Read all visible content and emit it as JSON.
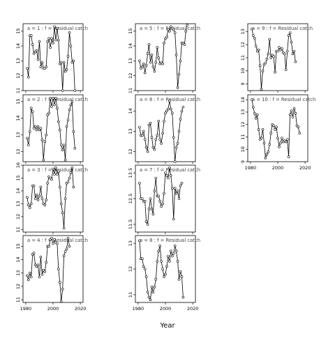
{
  "xlabel": "Year",
  "chart_data": [
    {
      "type": "line",
      "title": "a = 1 : f = Residual catch",
      "x": [
        1981,
        1982,
        1983,
        1984,
        1985,
        1986,
        1987,
        1988,
        1989,
        1990,
        1991,
        1992,
        1993,
        1994,
        1995,
        1996,
        1997,
        1998,
        1999,
        2000,
        2001,
        2002,
        2003,
        2004,
        2005,
        2006,
        2007,
        2008,
        2009,
        2010,
        2011,
        2012,
        2013,
        2014,
        2015,
        2016,
        2017,
        2018
      ],
      "y": [
        12.5,
        11.9,
        14.7,
        14.7,
        14.1,
        13.5,
        13.6,
        13.7,
        13.1,
        14.3,
        12.6,
        12.9,
        12.5,
        12.5,
        12.6,
        14.3,
        14.5,
        13.9,
        14.5,
        14.2,
        15.3,
        14.4,
        15.2,
        14.4,
        12.8,
        12.9,
        11.0,
        12.9,
        12.3,
        12.4,
        13.3,
        14.9,
        14.0,
        12.9,
        13.0,
        11.0,
        null,
        null
      ],
      "xlim": [
        1978,
        2022
      ],
      "ylim": [
        11,
        15.5
      ],
      "yticks": [
        11,
        12,
        13,
        14,
        15
      ],
      "xticks": [
        1980,
        2000,
        2020
      ],
      "show_xticklabels": false
    },
    {
      "type": "line",
      "title": "a = 5 : f = Residual catch",
      "x": [
        1981,
        1982,
        1983,
        1984,
        1985,
        1986,
        1987,
        1988,
        1989,
        1990,
        1991,
        1992,
        1993,
        1994,
        1995,
        1996,
        1997,
        1998,
        1999,
        2000,
        2001,
        2002,
        2003,
        2004,
        2005,
        2006,
        2007,
        2008,
        2009,
        2010,
        2011,
        2012,
        2013,
        2014,
        2015,
        2016,
        2017,
        2018
      ],
      "y": [
        13.0,
        12.5,
        12.6,
        12.8,
        12.2,
        12.7,
        13.5,
        14.1,
        12.9,
        13.4,
        12.6,
        12.3,
        12.9,
        13.9,
        13.2,
        12.8,
        12.9,
        12.8,
        14.2,
        14.5,
        14.6,
        15.1,
        15.0,
        15.3,
        15.2,
        15.1,
        14.9,
        13.4,
        11.2,
        12.1,
        13.0,
        14.2,
        14.2,
        14.1,
        15.0,
        15.4,
        null,
        null
      ],
      "xlim": [
        1978,
        2022
      ],
      "ylim": [
        11,
        15.5
      ],
      "yticks": [
        11,
        12,
        13,
        14,
        15
      ],
      "xticks": [
        1980,
        2000,
        2020
      ],
      "show_xticklabels": false
    },
    {
      "type": "line",
      "title": "a = 9 : f = Residual catch",
      "x": [
        1981,
        1982,
        1983,
        1984,
        1985,
        1986,
        1987,
        1988,
        1989,
        1990,
        1991,
        1992,
        1993,
        1994,
        1995,
        1996,
        1997,
        1998,
        1999,
        2000,
        2001,
        2002,
        2003,
        2004,
        2005,
        2006,
        2007,
        2008,
        2009,
        2010,
        2011,
        2012,
        2013,
        2014,
        2015,
        2016,
        2017,
        2018
      ],
      "y": [
        13.2,
        12.7,
        12.5,
        11.9,
        11.5,
        11.6,
        10.4,
        8.6,
        10.0,
        10.5,
        10.6,
        10.9,
        11.3,
        12.4,
        11.0,
        11.2,
        11.1,
        9.9,
        11.5,
        11.5,
        11.8,
        11.6,
        11.7,
        11.4,
        11.3,
        10.1,
        11.5,
        12.7,
        12.9,
        12.2,
        11.3,
        11.5,
        10.7,
        null,
        null,
        null,
        null,
        null
      ],
      "xlim": [
        1978,
        2022
      ],
      "ylim": [
        8.5,
        13.6
      ],
      "yticks": [
        9,
        10,
        11,
        12,
        13
      ],
      "xticks": [
        1980,
        2000,
        2020
      ],
      "show_xticklabels": false
    },
    {
      "type": "line",
      "title": "a = 2 : f = Residual catch",
      "x": [
        1981,
        1982,
        1983,
        1984,
        1985,
        1986,
        1987,
        1988,
        1989,
        1990,
        1991,
        1992,
        1993,
        1994,
        1995,
        1996,
        1997,
        1998,
        1999,
        2000,
        2001,
        2002,
        2003,
        2004,
        2005,
        2006,
        2007,
        2008,
        2009,
        2010,
        2011,
        2012,
        2013,
        2014,
        2015,
        2016,
        2017,
        2018
      ],
      "y": [
        12.8,
        12.4,
        13.2,
        14.6,
        14.4,
        13.4,
        13.5,
        13.3,
        13.5,
        13.3,
        13.4,
        12.7,
        11.5,
        12.6,
        13.0,
        14.2,
        14.3,
        15.2,
        14.7,
        15.2,
        14.8,
        15.2,
        14.6,
        13.8,
        13.3,
        12.4,
        12.1,
        12.4,
        11.5,
        13.5,
        13.9,
        14.5,
        14.8,
        15.0,
        13.2,
        12.2,
        null,
        null
      ],
      "xlim": [
        1978,
        2022
      ],
      "ylim": [
        11.4,
        15.4
      ],
      "yticks": [
        12,
        13,
        14,
        15
      ],
      "xticks": [
        1980,
        2000,
        2020
      ],
      "show_xticklabels": false
    },
    {
      "type": "line",
      "title": "a = 6 : f = Residual catch",
      "x": [
        1981,
        1982,
        1983,
        1984,
        1985,
        1986,
        1987,
        1988,
        1989,
        1990,
        1991,
        1992,
        1993,
        1994,
        1995,
        1996,
        1997,
        1998,
        1999,
        2000,
        2001,
        2002,
        2003,
        2004,
        2005,
        2006,
        2007,
        2008,
        2009,
        2010,
        2011,
        2012,
        2013,
        2014,
        2015,
        2016,
        2017,
        2018
      ],
      "y": [
        13.2,
        12.8,
        12.8,
        13.0,
        12.6,
        12.2,
        12.0,
        13.3,
        13.4,
        12.7,
        12.2,
        12.1,
        12.6,
        12.8,
        13.5,
        12.6,
        12.4,
        12.9,
        13.5,
        13.9,
        14.0,
        14.1,
        14.5,
        14.1,
        13.9,
        12.7,
        11.5,
        12.2,
        12.4,
        13.0,
        13.6,
        14.0,
        14.2,
        null,
        null,
        null,
        null,
        null
      ],
      "xlim": [
        1978,
        2022
      ],
      "ylim": [
        11.5,
        14.8
      ],
      "yticks": [
        12.0,
        13.0,
        14.0
      ],
      "xticks": [
        1980,
        2000,
        2020
      ],
      "show_xticklabels": false
    },
    {
      "type": "line",
      "title": "a = 10 : f = Residual catch",
      "x": [
        1981,
        1982,
        1983,
        1984,
        1985,
        1986,
        1987,
        1988,
        1989,
        1990,
        1991,
        1992,
        1993,
        1994,
        1995,
        1996,
        1997,
        1998,
        1999,
        2000,
        2001,
        2002,
        2003,
        2004,
        2005,
        2006,
        2007,
        2008,
        2009,
        2010,
        2011,
        2012,
        2013,
        2014,
        2015,
        2016,
        2017,
        2018
      ],
      "y": [
        14.0,
        13.4,
        12.9,
        12.5,
        12.8,
        11.6,
        10.8,
        10.9,
        11.6,
        10.5,
        9.3,
        9.6,
        9.8,
        10.4,
        11.3,
        12.0,
        11.9,
        11.6,
        11.8,
        10.9,
        10.2,
        10.5,
        10.9,
        10.6,
        10.7,
        10.6,
        10.8,
        9.4,
        12.8,
        13.1,
        12.6,
        13.3,
        12.9,
        11.9,
        11.8,
        11.3,
        null,
        null
      ],
      "xlim": [
        1978,
        2022
      ],
      "ylim": [
        9,
        14.4
      ],
      "yticks": [
        9,
        10,
        11,
        12,
        13,
        14
      ],
      "xticks": [
        1980,
        2000,
        2020
      ],
      "show_xticklabels": true
    },
    {
      "type": "line",
      "title": "a = 3 : f = Residual catch",
      "x": [
        1981,
        1982,
        1983,
        1984,
        1985,
        1986,
        1987,
        1988,
        1989,
        1990,
        1991,
        1992,
        1993,
        1994,
        1995,
        1996,
        1997,
        1998,
        1999,
        2000,
        2001,
        2002,
        2003,
        2004,
        2005,
        2006,
        2007,
        2008,
        2009,
        2010,
        2011,
        2012,
        2013,
        2014,
        2015,
        2016,
        2017,
        2018
      ],
      "y": [
        13.5,
        12.9,
        12.7,
        13.0,
        14.4,
        14.4,
        13.4,
        13.7,
        13.3,
        13.6,
        14.3,
        13.4,
        13.0,
        12.9,
        13.3,
        14.6,
        15.1,
        15.0,
        14.9,
        15.7,
        15.3,
        15.8,
        15.3,
        15.5,
        14.3,
        13.0,
        12.3,
        11.1,
        13.4,
        14.6,
        14.7,
        15.0,
        15.4,
        15.8,
        14.3,
        null,
        null,
        null
      ],
      "xlim": [
        1978,
        2022
      ],
      "ylim": [
        10.8,
        16
      ],
      "yticks": [
        11,
        12,
        13,
        14,
        15,
        16
      ],
      "xticks": [
        1980,
        2000,
        2020
      ],
      "show_xticklabels": false
    },
    {
      "type": "line",
      "title": "a = 7 : f = Residual catch",
      "x": [
        1981,
        1982,
        1983,
        1984,
        1985,
        1986,
        1987,
        1988,
        1989,
        1990,
        1991,
        1992,
        1993,
        1994,
        1995,
        1996,
        1997,
        1998,
        1999,
        2000,
        2001,
        2002,
        2003,
        2004,
        2005,
        2006,
        2007,
        2008,
        2009,
        2010,
        2011,
        2012,
        2013,
        2014,
        2015,
        2016,
        2017,
        2018
      ],
      "y": [
        13.1,
        12.5,
        12.5,
        12.4,
        12.4,
        11.6,
        11.5,
        12.1,
        12.5,
        12.1,
        11.9,
        12.8,
        13.3,
        12.6,
        12.6,
        12.4,
        12.2,
        12.3,
        12.7,
        13.5,
        13.4,
        13.3,
        13.7,
        13.4,
        12.9,
        11.7,
        12.9,
        12.7,
        12.8,
        12.5,
        13.0,
        13.1,
        null,
        null,
        null,
        null,
        null,
        null
      ],
      "xlim": [
        1978,
        2022
      ],
      "ylim": [
        11.2,
        13.8
      ],
      "yticks": [
        11.5,
        12.5,
        13.5
      ],
      "xticks": [
        1980,
        2000,
        2020
      ],
      "show_xticklabels": false
    },
    {
      "type": "line",
      "title": "a = 4 : f = Residual catch",
      "x": [
        1981,
        1982,
        1983,
        1984,
        1985,
        1986,
        1987,
        1988,
        1989,
        1990,
        1991,
        1992,
        1993,
        1994,
        1995,
        1996,
        1997,
        1998,
        1999,
        2000,
        2001,
        2002,
        2003,
        2004,
        2005,
        2006,
        2007,
        2008,
        2009,
        2010,
        2011,
        2012,
        2013,
        2014,
        2015,
        2016,
        2017,
        2018
      ],
      "y": [
        12.8,
        12.5,
        13.0,
        12.7,
        14.4,
        14.5,
        13.6,
        13.5,
        13.6,
        12.7,
        14.2,
        12.9,
        13.2,
        13.1,
        13.8,
        15.0,
        15.0,
        15.5,
        15.6,
        15.2,
        15.5,
        15.3,
        15.2,
        13.3,
        12.3,
        10.9,
        11.8,
        14.3,
        14.6,
        14.8,
        15.6,
        15.0,
        null,
        null,
        null,
        null,
        null,
        null
      ],
      "xlim": [
        1978,
        2022
      ],
      "ylim": [
        10.8,
        15.8
      ],
      "yticks": [
        11,
        12,
        13,
        14,
        15
      ],
      "xticks": [
        1980,
        2000,
        2020
      ],
      "show_xticklabels": true
    },
    {
      "type": "line",
      "title": "a = 8 : f = Residual catch",
      "x": [
        1981,
        1982,
        1983,
        1984,
        1985,
        1986,
        1987,
        1988,
        1989,
        1990,
        1991,
        1992,
        1993,
        1994,
        1995,
        1996,
        1997,
        1998,
        1999,
        2000,
        2001,
        2002,
        2003,
        2004,
        2005,
        2006,
        2007,
        2008,
        2009,
        2010,
        2011,
        2012,
        2013,
        2014,
        2015,
        2016,
        2017,
        2018
      ],
      "y": [
        13.1,
        12.4,
        12.4,
        12.1,
        12.0,
        11.7,
        11.1,
        10.9,
        10.8,
        11.3,
        11.1,
        11.3,
        11.6,
        12.3,
        12.7,
        12.9,
        12.3,
        12.0,
        11.7,
        11.8,
        12.1,
        12.5,
        12.3,
        12.7,
        12.5,
        12.6,
        12.9,
        12.7,
        12.3,
        11.6,
        11.9,
        11.7,
        10.9,
        null,
        null,
        null,
        null,
        null
      ],
      "xlim": [
        1978,
        2022
      ],
      "ylim": [
        10.7,
        13.3
      ],
      "yticks": [
        11.0,
        12.0,
        13.0
      ],
      "xticks": [
        1980,
        2000,
        2020
      ],
      "show_xticklabels": true
    }
  ]
}
